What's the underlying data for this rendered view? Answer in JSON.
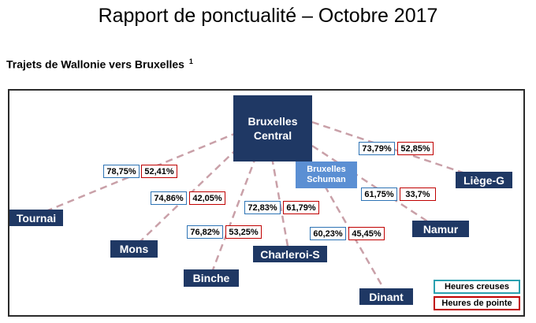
{
  "title": "Rapport de ponctualité – Octobre 2017",
  "subtitle": "Trajets de Wallonie vers Bruxelles",
  "footnote_marker": "1",
  "hub": {
    "line1": "Bruxelles",
    "line2": "Central"
  },
  "schuman": {
    "line1": "Bruxelles",
    "line2": "Schuman"
  },
  "routes": [
    {
      "station": "Tournai",
      "off_peak": "78,75%",
      "peak": "52,41%"
    },
    {
      "station": "Mons",
      "off_peak": "74,86%",
      "peak": "42,05%"
    },
    {
      "station": "Binche",
      "off_peak": "76,82%",
      "peak": "53,25%"
    },
    {
      "station": "Charleroi-S",
      "off_peak": "72,83%",
      "peak": "61,79%"
    },
    {
      "station": "Dinant",
      "off_peak": "60,23%",
      "peak": "45,45%"
    },
    {
      "station": "Namur",
      "off_peak": "61,75%",
      "peak": "33,7%"
    },
    {
      "station": "Liège-G",
      "off_peak": "73,79%",
      "peak": "52,85%"
    }
  ],
  "legend": {
    "off_peak": "Heures creuses",
    "peak": "Heures de pointe"
  },
  "colors": {
    "station": "#1f3864",
    "schuman": "#5b8fd3",
    "off_peak_border": "#2e74b5",
    "peak_border": "#c00000",
    "link": "#c9a0a8"
  }
}
